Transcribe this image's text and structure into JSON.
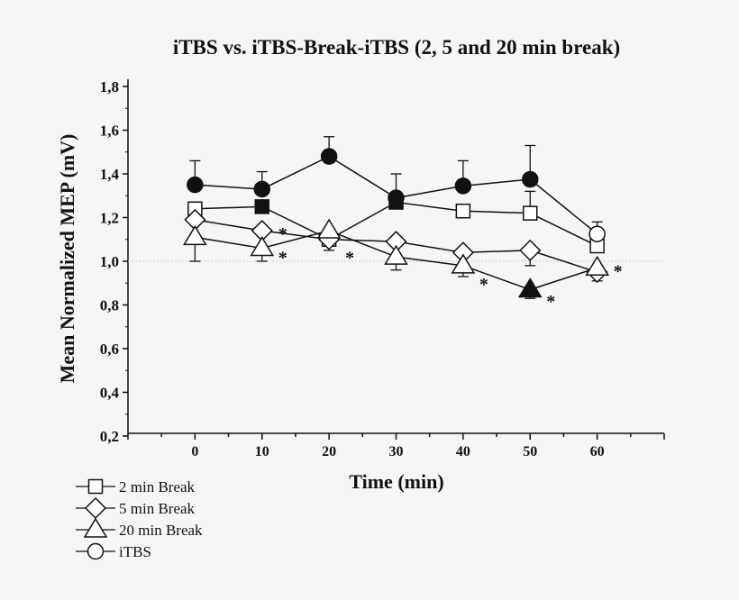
{
  "chart_data": {
    "type": "line",
    "title": "iTBS vs. iTBS-Break-iTBS (2, 5 and 20 min break)",
    "xlabel": "Time (min)",
    "ylabel": "Mean Normalized MEP (mV)",
    "xlim": [
      -10,
      70
    ],
    "ylim": [
      0.2,
      1.8
    ],
    "xticks": [
      0,
      10,
      20,
      30,
      40,
      50,
      60
    ],
    "yticks": [
      "0,2",
      "0,4",
      "0,6",
      "0,8",
      "1,0",
      "1,2",
      "1,4",
      "1,6",
      "1,8"
    ],
    "yticks_values": [
      0.2,
      0.4,
      0.6,
      0.8,
      1.0,
      1.2,
      1.4,
      1.6,
      1.8
    ],
    "reference_line": 1.0,
    "x": [
      0,
      10,
      20,
      30,
      40,
      50,
      60
    ],
    "series": [
      {
        "name": "2  min  Break",
        "marker": "square",
        "values": [
          1.24,
          1.25,
          1.1,
          1.27,
          1.23,
          1.22,
          1.07
        ],
        "filled": [
          false,
          true,
          false,
          true,
          false,
          false,
          false
        ],
        "error_upper": [
          null,
          null,
          null,
          null,
          null,
          1.32,
          null
        ],
        "error_lower": [
          null,
          null,
          1.05,
          null,
          null,
          null,
          null
        ]
      },
      {
        "name": "5  min  Break",
        "marker": "diamond",
        "values": [
          1.19,
          1.14,
          1.1,
          1.09,
          1.04,
          1.05,
          0.95
        ],
        "filled": [
          false,
          false,
          false,
          false,
          false,
          false,
          false
        ],
        "error_upper": [
          null,
          null,
          null,
          null,
          null,
          null,
          null
        ],
        "error_lower": [
          null,
          null,
          null,
          null,
          null,
          0.98,
          0.91
        ]
      },
      {
        "name": "20 min Break",
        "marker": "triangle",
        "values": [
          1.11,
          1.06,
          1.14,
          1.02,
          0.98,
          0.87,
          0.97
        ],
        "filled": [
          false,
          false,
          false,
          false,
          false,
          true,
          false
        ],
        "error_upper": [
          null,
          null,
          null,
          null,
          null,
          null,
          null
        ],
        "error_lower": [
          1.0,
          1.0,
          null,
          0.96,
          0.93,
          0.83,
          null
        ]
      },
      {
        "name": "iTBS",
        "marker": "circle",
        "values": [
          1.35,
          1.33,
          1.48,
          1.29,
          1.345,
          1.375,
          1.125
        ],
        "filled": [
          true,
          true,
          true,
          true,
          true,
          true,
          false
        ],
        "error_upper": [
          1.46,
          1.41,
          1.57,
          1.4,
          1.46,
          1.53,
          1.18
        ],
        "error_lower": [
          null,
          null,
          null,
          null,
          null,
          null,
          null
        ]
      }
    ],
    "annotations": [
      {
        "text": "*",
        "x": 10,
        "y": 1.14
      },
      {
        "text": "*",
        "x": 10,
        "y": 1.03
      },
      {
        "text": "*",
        "x": 20,
        "y": 1.03
      },
      {
        "text": "*",
        "x": 40,
        "y": 0.91
      },
      {
        "text": "*",
        "x": 50,
        "y": 0.83
      },
      {
        "text": "*",
        "x": 60,
        "y": 0.97
      }
    ],
    "legend_placement": "bottom-left",
    "grid": false
  }
}
